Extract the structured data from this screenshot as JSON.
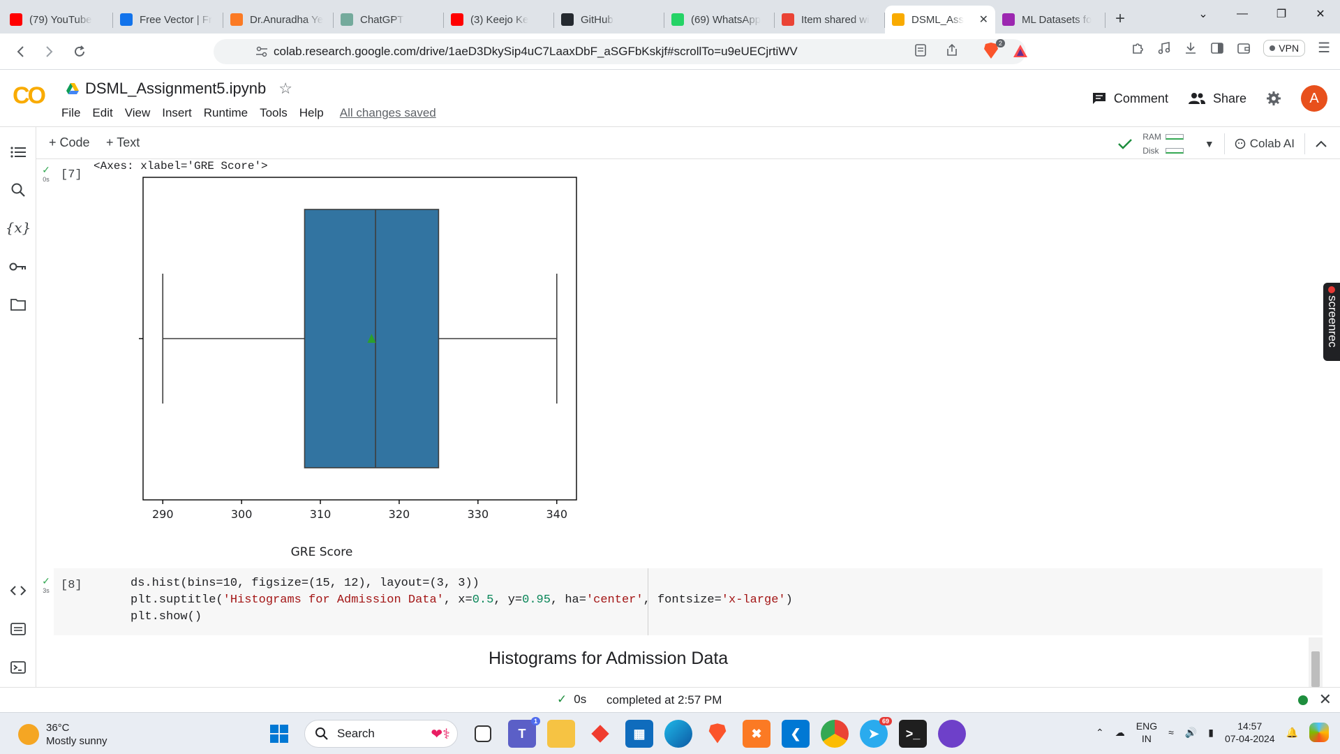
{
  "browser": {
    "tabs": [
      {
        "title": "(79) YouTube",
        "icon": "youtube-icon",
        "color": "#ff0000"
      },
      {
        "title": "Free Vector | Fr",
        "icon": "freepik-icon",
        "color": "#1273eb"
      },
      {
        "title": "Dr.Anuradha Ye",
        "icon": "xampp-icon",
        "color": "#fb7a24"
      },
      {
        "title": "ChatGPT",
        "icon": "chatgpt-icon",
        "color": "#74aa9c"
      },
      {
        "title": "(3) Keejo Ke",
        "icon": "youtube-icon",
        "color": "#ff0000"
      },
      {
        "title": "GitHub",
        "icon": "github-icon",
        "color": "#24292f"
      },
      {
        "title": "(69) WhatsApp",
        "icon": "whatsapp-icon",
        "color": "#25d366"
      },
      {
        "title": "Item shared wi",
        "icon": "gmail-icon",
        "color": "#ea4335"
      },
      {
        "title": "DSML_Ass",
        "icon": "colab-icon",
        "color": "#f9ab00",
        "active": true
      },
      {
        "title": "ML Datasets fo",
        "icon": "kaggle-icon",
        "color": "#9c27b0"
      }
    ],
    "url": "colab.research.google.com/drive/1aeD3DkySip4uC7LaaxDbF_aSGFbKskjf#scrollTo=u9eUECjrtiWV",
    "vpn_label": "VPN",
    "brave_badge": "2"
  },
  "colab": {
    "logo": "CO",
    "notebook_title": "DSML_Assignment5.ipynb",
    "menu": [
      "File",
      "Edit",
      "View",
      "Insert",
      "Runtime",
      "Tools",
      "Help"
    ],
    "save_status": "All changes saved",
    "comment_label": "Comment",
    "share_label": "Share",
    "avatar_letter": "A",
    "add_code_label": "+ Code",
    "add_text_label": "+ Text",
    "ram_label": "RAM",
    "disk_label": "Disk",
    "colab_ai_label": "Colab AI"
  },
  "cells": {
    "cell7": {
      "exec_count": "[7]",
      "run_time": "0s",
      "output_text": "<Axes: xlabel='GRE Score'>"
    },
    "cell8": {
      "exec_count": "[8]",
      "run_time": "3s",
      "line1": "ds.hist(bins=10, figsize=(15, 12), layout=(3, 3))",
      "line3": "plt.show()",
      "output_title": "Histograms for Admission Data"
    }
  },
  "chart_data": {
    "type": "boxplot",
    "orientation": "horizontal",
    "xlabel": "GRE Score",
    "xticks": [
      290,
      300,
      310,
      320,
      330,
      340
    ],
    "xlim": [
      287.5,
      342.5
    ],
    "whisker_low": 290,
    "q1": 308,
    "median": 317,
    "q3": 325,
    "whisker_high": 340,
    "mean": 316.5,
    "box_color": "#3274a1",
    "mean_marker_color": "#2ca02c"
  },
  "status": {
    "elapsed": "0s",
    "completed": "completed at 2:57 PM"
  },
  "taskbar": {
    "temperature": "36°C",
    "weather": "Mostly sunny",
    "search_label": "Search",
    "lang_top": "ENG",
    "lang_bottom": "IN",
    "time": "14:57",
    "date": "07-04-2024",
    "telegram_badge": "69",
    "teams_badge": "1"
  },
  "screenrec_label": "screenrec"
}
